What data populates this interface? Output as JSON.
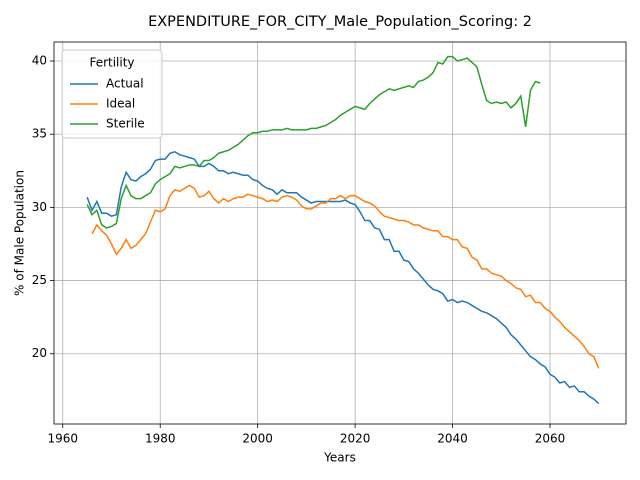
{
  "chart_data": {
    "type": "line",
    "title": "EXPENDITURE_FOR_CITY_Male_Population_Scoring: 2",
    "x_label": "Years",
    "y_label": "% of Male Population",
    "legend_title": "Fertility",
    "legend_position": "upper left",
    "grid": true,
    "x": [
      1965,
      1966,
      1967,
      1968,
      1969,
      1970,
      1971,
      1972,
      1973,
      1974,
      1975,
      1976,
      1977,
      1978,
      1979,
      1980,
      1981,
      1982,
      1983,
      1984,
      1985,
      1986,
      1987,
      1988,
      1989,
      1990,
      1991,
      1992,
      1993,
      1994,
      1995,
      1996,
      1997,
      1998,
      1999,
      2000,
      2001,
      2002,
      2003,
      2004,
      2005,
      2006,
      2007,
      2008,
      2009,
      2010,
      2011,
      2012,
      2013,
      2014,
      2015,
      2016,
      2017,
      2018,
      2019,
      2020,
      2021,
      2022,
      2023,
      2024,
      2025,
      2026,
      2027,
      2028,
      2029,
      2030,
      2031,
      2032,
      2033,
      2034,
      2035,
      2036,
      2037,
      2038,
      2039,
      2040,
      2041,
      2042,
      2043,
      2044,
      2045,
      2046,
      2047,
      2048,
      2049,
      2050,
      2051,
      2052,
      2053,
      2054,
      2055,
      2056,
      2057,
      2058,
      2059,
      2060,
      2061,
      2062,
      2063,
      2064,
      2065,
      2066,
      2067,
      2068,
      2069,
      2070
    ],
    "series": [
      {
        "name": "Actual",
        "color": "#1f77b4",
        "values": [
          30.7,
          29.8,
          30.4,
          29.6,
          29.6,
          29.4,
          29.5,
          31.4,
          32.4,
          31.9,
          31.8,
          32.1,
          32.3,
          32.6,
          33.2,
          33.3,
          33.3,
          33.7,
          33.8,
          33.6,
          33.5,
          33.4,
          33.3,
          32.8,
          32.8,
          33.0,
          32.8,
          32.5,
          32.5,
          32.3,
          32.4,
          32.3,
          32.2,
          32.2,
          31.9,
          31.8,
          31.5,
          31.3,
          31.2,
          30.9,
          31.2,
          31.0,
          31.0,
          31.0,
          30.7,
          30.5,
          30.3,
          30.4,
          30.4,
          30.4,
          30.4,
          30.4,
          30.4,
          30.5,
          30.3,
          30.2,
          29.7,
          29.1,
          29.1,
          28.6,
          28.5,
          27.8,
          27.8,
          27.0,
          27.0,
          26.4,
          26.3,
          25.8,
          25.5,
          25.1,
          24.7,
          24.4,
          24.3,
          24.1,
          23.6,
          23.7,
          23.5,
          23.6,
          23.5,
          23.3,
          23.1,
          22.9,
          22.8,
          22.6,
          22.4,
          22.1,
          21.8,
          21.3,
          21.0,
          20.6,
          20.2,
          19.8,
          19.6,
          19.3,
          19.1,
          18.6,
          18.4,
          18.0,
          18.1,
          17.7,
          17.8,
          17.4,
          17.4,
          17.1,
          16.9,
          16.6
        ]
      },
      {
        "name": "Ideal",
        "color": "#ff7f0e",
        "values": [
          null,
          28.2,
          28.8,
          28.4,
          28.1,
          27.5,
          26.8,
          27.2,
          27.8,
          27.2,
          27.4,
          27.8,
          28.2,
          29.0,
          29.8,
          29.7,
          29.9,
          30.8,
          31.2,
          31.1,
          31.3,
          31.5,
          31.3,
          30.7,
          30.8,
          31.1,
          30.6,
          30.3,
          30.6,
          30.4,
          30.6,
          30.7,
          30.7,
          30.9,
          30.8,
          30.7,
          30.6,
          30.4,
          30.5,
          30.4,
          30.7,
          30.8,
          30.7,
          30.5,
          30.1,
          29.9,
          29.9,
          30.1,
          30.3,
          30.3,
          30.6,
          30.6,
          30.8,
          30.6,
          30.8,
          30.8,
          30.6,
          30.4,
          30.3,
          30.1,
          29.7,
          29.4,
          29.3,
          29.2,
          29.1,
          29.1,
          29.0,
          28.8,
          28.8,
          28.6,
          28.5,
          28.4,
          28.4,
          28.0,
          28.0,
          27.8,
          27.8,
          27.3,
          27.2,
          26.6,
          26.4,
          25.8,
          25.8,
          25.5,
          25.4,
          25.3,
          25.0,
          24.8,
          24.5,
          24.4,
          23.9,
          24.0,
          23.5,
          23.5,
          23.1,
          22.9,
          22.5,
          22.2,
          21.8,
          21.5,
          21.2,
          20.9,
          20.5,
          20.0,
          19.8,
          19.0
        ]
      },
      {
        "name": "Sterile",
        "color": "#2ca02c",
        "values": [
          30.2,
          29.5,
          29.8,
          28.8,
          28.6,
          28.7,
          28.9,
          30.6,
          31.5,
          30.8,
          30.6,
          30.6,
          30.8,
          31.0,
          31.6,
          31.9,
          32.1,
          32.3,
          32.8,
          32.7,
          32.8,
          32.9,
          32.9,
          32.8,
          33.2,
          33.2,
          33.4,
          33.7,
          33.8,
          33.9,
          34.1,
          34.3,
          34.6,
          34.9,
          35.1,
          35.1,
          35.2,
          35.2,
          35.3,
          35.3,
          35.3,
          35.4,
          35.3,
          35.3,
          35.3,
          35.3,
          35.4,
          35.4,
          35.5,
          35.6,
          35.8,
          36.0,
          36.3,
          36.5,
          36.7,
          36.9,
          36.8,
          36.7,
          37.1,
          37.4,
          37.7,
          37.9,
          38.1,
          38.0,
          38.1,
          38.2,
          38.3,
          38.2,
          38.6,
          38.7,
          38.9,
          39.2,
          39.9,
          39.8,
          40.3,
          40.3,
          40.0,
          40.1,
          40.2,
          39.9,
          39.6,
          38.4,
          37.3,
          37.1,
          37.2,
          37.1,
          37.2,
          36.8,
          37.1,
          37.6,
          35.5,
          38.0,
          38.6,
          38.5,
          null,
          null,
          null,
          null,
          null,
          null,
          null,
          null,
          null,
          null,
          null,
          null
        ]
      }
    ],
    "xlim": [
      1958.2,
      2075.6
    ],
    "xticks": [
      1960,
      1980,
      2000,
      2020,
      2040,
      2060
    ],
    "ylim": [
      15.2,
      41.3
    ],
    "yticks": [
      20,
      25,
      30,
      35,
      40
    ]
  }
}
